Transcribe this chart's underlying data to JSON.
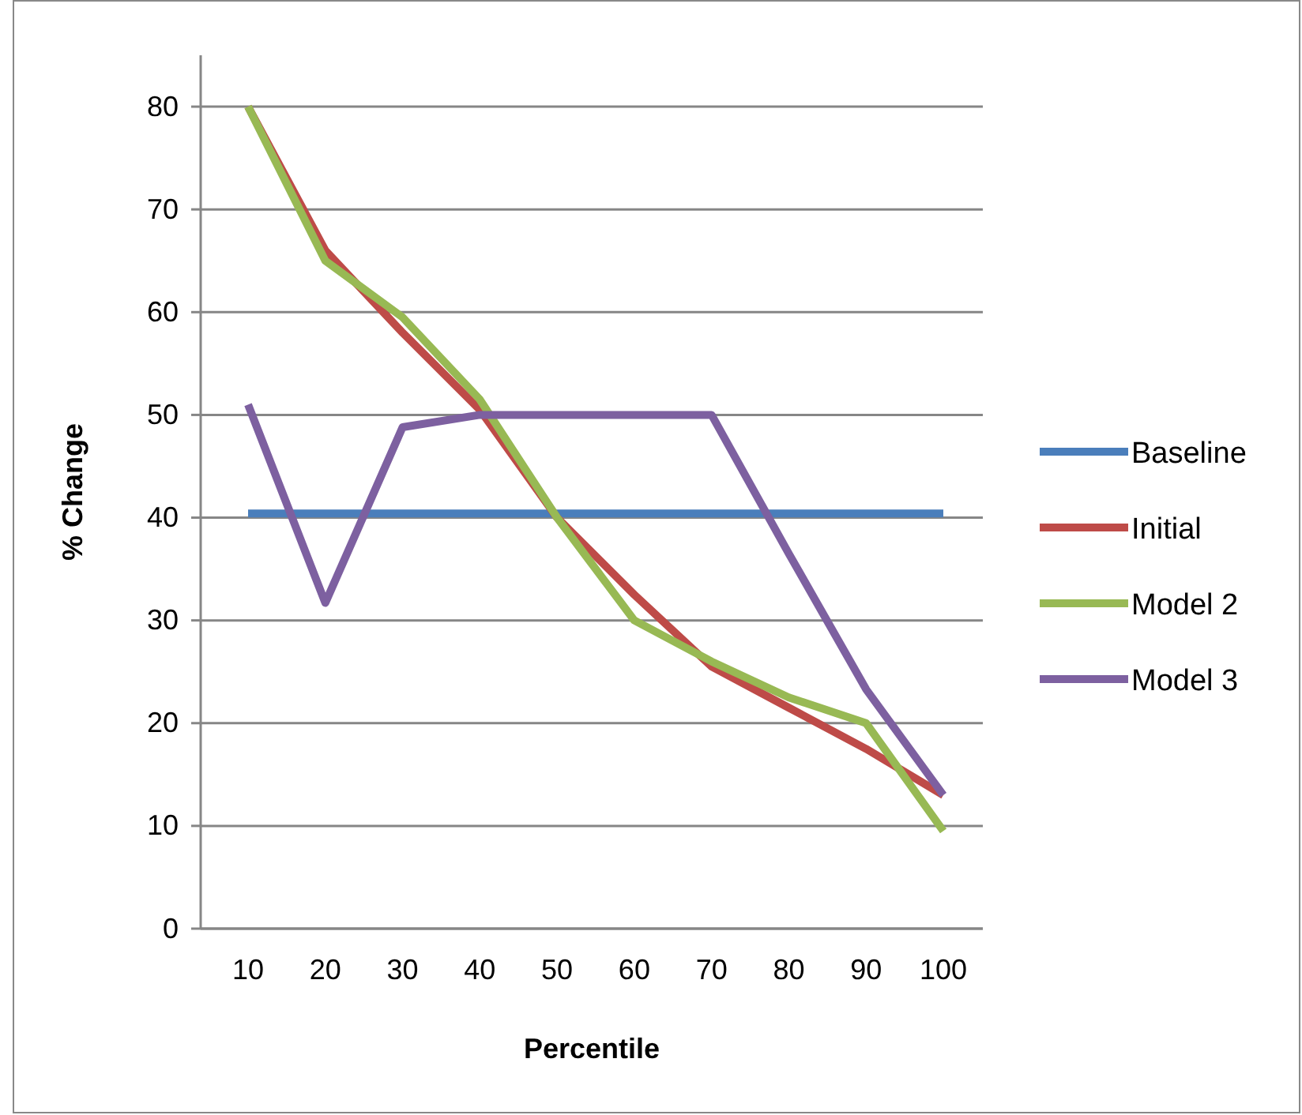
{
  "chart_data": {
    "type": "line",
    "xlabel": "Percentile",
    "ylabel": "% Change",
    "categories": [
      "10",
      "20",
      "30",
      "40",
      "50",
      "60",
      "70",
      "80",
      "90",
      "100"
    ],
    "series": [
      {
        "name": "Baseline",
        "color": "#4a7ebb",
        "values": [
          40.4,
          40.4,
          40.4,
          40.4,
          40.4,
          40.4,
          40.4,
          40.4,
          40.4,
          40.4
        ]
      },
      {
        "name": "Initial",
        "color": "#be4b48",
        "values": [
          80,
          66,
          58,
          50.5,
          40,
          32.5,
          25.5,
          21.5,
          17.5,
          13
        ]
      },
      {
        "name": "Model 2",
        "color": "#98b954",
        "values": [
          80,
          65,
          59.5,
          51.5,
          40,
          30,
          26,
          22.5,
          20,
          9.5
        ]
      },
      {
        "name": "Model 3",
        "color": "#7d60a0",
        "values": [
          51,
          31.7,
          48.8,
          50,
          50,
          50,
          50,
          36.5,
          23.3,
          13
        ]
      }
    ],
    "ylim": [
      0,
      85
    ],
    "yticks": [
      0,
      10,
      20,
      30,
      40,
      50,
      60,
      70,
      80
    ],
    "grid": "y",
    "legend": "right",
    "marker": "none",
    "line_style": "solid"
  }
}
